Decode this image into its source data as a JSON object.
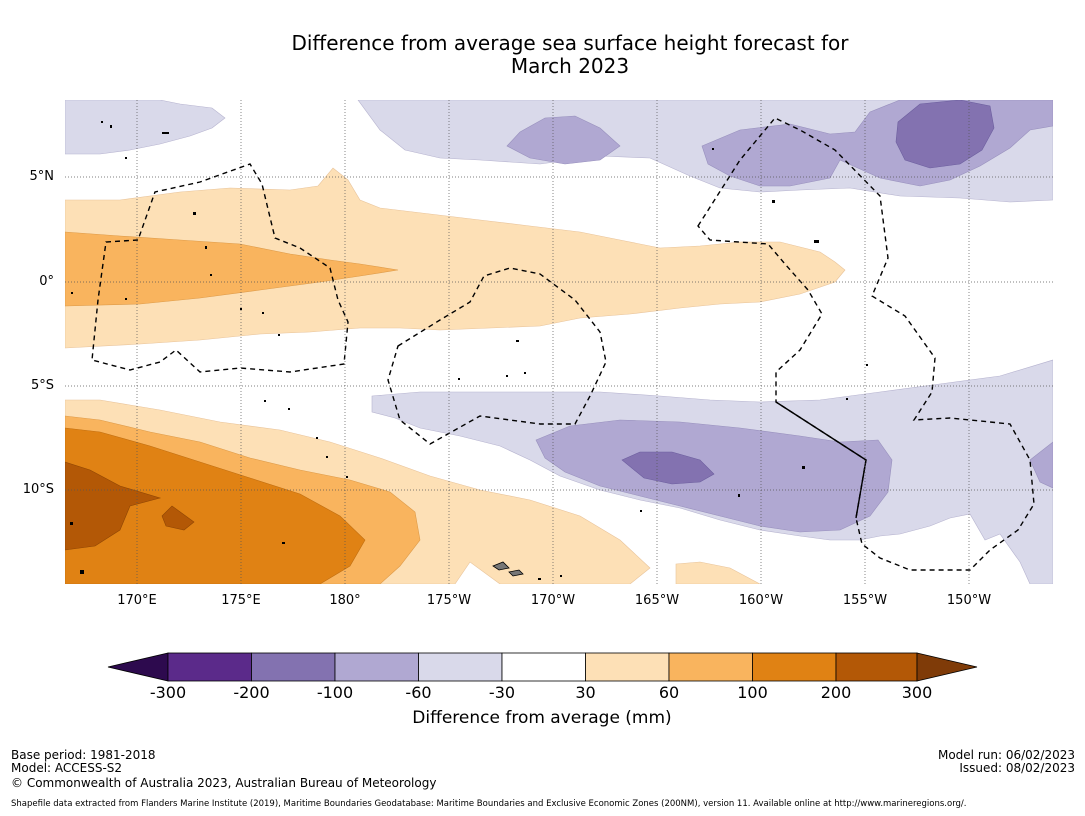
{
  "title_line1": "Difference from average sea surface height forecast for",
  "title_line2": "March 2023",
  "x_labels": [
    "170°E",
    "175°E",
    "180°",
    "175°W",
    "170°W",
    "165°W",
    "160°W",
    "155°W",
    "150°W"
  ],
  "y_labels": [
    "5°N",
    "0°",
    "5°S",
    "10°S"
  ],
  "colorbar": {
    "title": "Difference from average (mm)",
    "ticks": [
      "-300",
      "-200",
      "-100",
      "-60",
      "-30",
      "30",
      "60",
      "100",
      "200",
      "300"
    ],
    "colors": [
      "#2d0a4e",
      "#5b2a8a",
      "#8372b0",
      "#b0a8d2",
      "#d9d9ea",
      "#ffffff",
      "#fde0b6",
      "#f9b45e",
      "#e08214",
      "#b35806",
      "#7f3b08"
    ]
  },
  "footer": {
    "base_period": "Base period: 1981-2018",
    "model": "Model: ACCESS-S2",
    "copyright": "© Commonwealth of Australia 2023, Australian Bureau of Meteorology",
    "model_run": "Model run: 06/02/2023",
    "issued": "Issued: 08/02/2023",
    "shapefile": "Shapefile data extracted from Flanders Marine Institute (2019), Maritime Boundaries Geodatabase: Maritime Boundaries and Exclusive Economic Zones (200NM), version 11. Available online at http://www.marineregions.org/."
  }
}
